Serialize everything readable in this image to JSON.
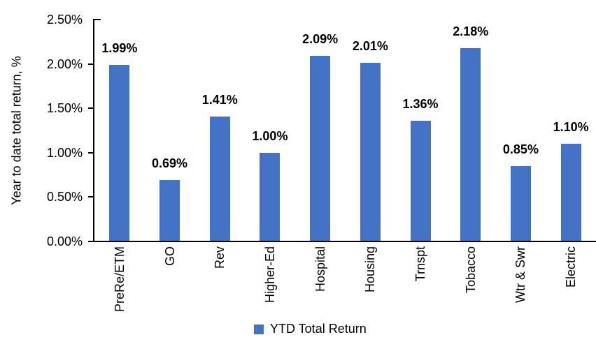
{
  "chart_data": {
    "type": "bar",
    "categories": [
      "PreRe/ETM",
      "GO",
      "Rev",
      "Higher-Ed",
      "Hospital",
      "Housing",
      "Trnspt",
      "Tobacco",
      "Wtr & Swr",
      "Electric"
    ],
    "values": [
      1.99,
      0.69,
      1.41,
      1.0,
      2.09,
      2.01,
      1.36,
      2.18,
      0.85,
      1.1
    ],
    "labels": [
      "1.99%",
      "0.69%",
      "1.41%",
      "1.00%",
      "2.09%",
      "2.01%",
      "1.36%",
      "2.18%",
      "0.85%",
      "1.10%"
    ],
    "title": "",
    "xlabel": "",
    "ylabel": "Year to date total return, %",
    "ylim": [
      0,
      2.5
    ],
    "yticks": [
      "0.00%",
      "0.50%",
      "1.00%",
      "1.50%",
      "2.00%",
      "2.50%"
    ],
    "legend": [
      "YTD Total Return"
    ],
    "legend_position": "bottom",
    "grid": false,
    "bar_color": "#4472C4",
    "axis_color": "#000000",
    "text_color": "#000000"
  }
}
